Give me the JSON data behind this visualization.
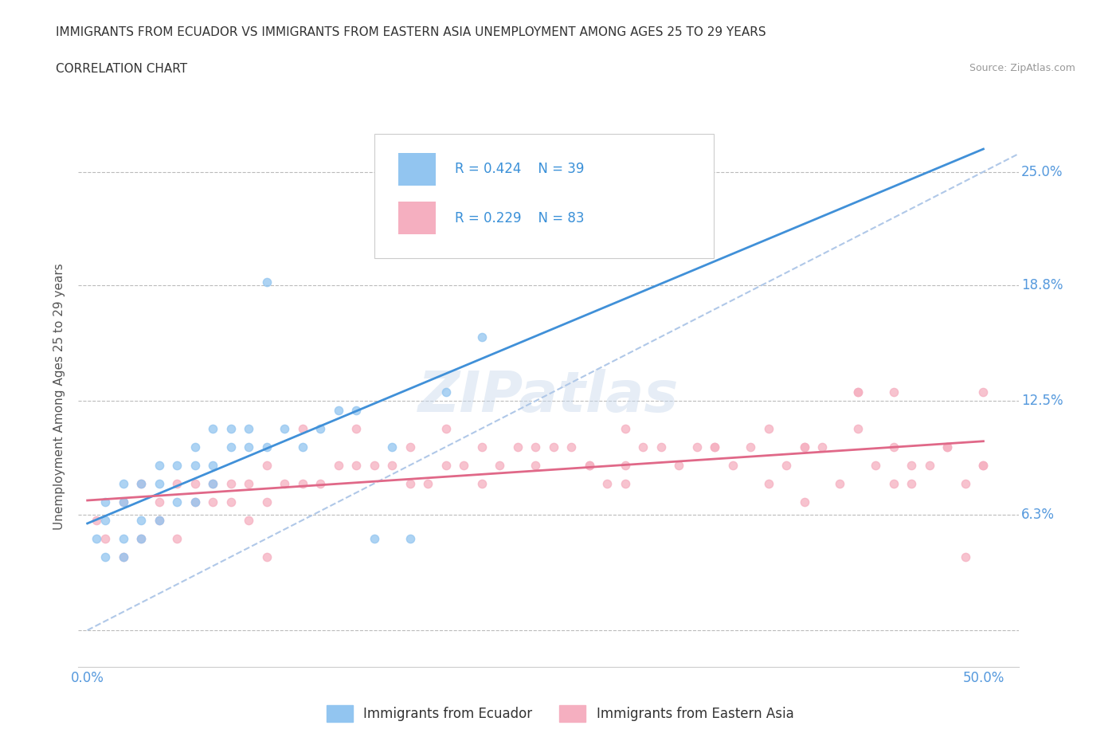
{
  "title_line1": "IMMIGRANTS FROM ECUADOR VS IMMIGRANTS FROM EASTERN ASIA UNEMPLOYMENT AMONG AGES 25 TO 29 YEARS",
  "title_line2": "CORRELATION CHART",
  "source_text": "Source: ZipAtlas.com",
  "ylabel": "Unemployment Among Ages 25 to 29 years",
  "xlim": [
    -0.005,
    0.52
  ],
  "ylim": [
    -0.02,
    0.275
  ],
  "ytick_vals": [
    0.0,
    0.063,
    0.125,
    0.188,
    0.25
  ],
  "ytick_labels": [
    "",
    "6.3%",
    "12.5%",
    "18.8%",
    "25.0%"
  ],
  "xtick_vals": [
    0.0,
    0.1,
    0.2,
    0.3,
    0.4,
    0.5
  ],
  "xtick_labels": [
    "0.0%",
    "",
    "",
    "",
    "",
    "50.0%"
  ],
  "ecuador_color": "#92c5f0",
  "eastern_asia_color": "#f5afc0",
  "ecuador_line_color": "#4090d8",
  "eastern_asia_line_color": "#e06888",
  "dashed_line_color": "#b0c8e8",
  "legend_label1": "Immigrants from Ecuador",
  "legend_label2": "Immigrants from Eastern Asia",
  "watermark": "ZIPatlas",
  "ecuador_x": [
    0.005,
    0.01,
    0.01,
    0.01,
    0.02,
    0.02,
    0.02,
    0.02,
    0.03,
    0.03,
    0.03,
    0.04,
    0.04,
    0.04,
    0.05,
    0.05,
    0.06,
    0.06,
    0.06,
    0.07,
    0.07,
    0.07,
    0.08,
    0.08,
    0.09,
    0.09,
    0.1,
    0.1,
    0.11,
    0.12,
    0.13,
    0.14,
    0.15,
    0.16,
    0.17,
    0.18,
    0.2,
    0.22,
    0.22
  ],
  "ecuador_y": [
    0.05,
    0.04,
    0.06,
    0.07,
    0.04,
    0.05,
    0.07,
    0.08,
    0.05,
    0.06,
    0.08,
    0.06,
    0.08,
    0.09,
    0.07,
    0.09,
    0.07,
    0.09,
    0.1,
    0.08,
    0.09,
    0.11,
    0.1,
    0.11,
    0.1,
    0.11,
    0.1,
    0.19,
    0.11,
    0.1,
    0.11,
    0.12,
    0.12,
    0.05,
    0.1,
    0.05,
    0.13,
    0.16,
    0.22
  ],
  "eastern_asia_x": [
    0.005,
    0.01,
    0.02,
    0.02,
    0.03,
    0.03,
    0.04,
    0.04,
    0.05,
    0.05,
    0.06,
    0.06,
    0.07,
    0.07,
    0.08,
    0.08,
    0.09,
    0.09,
    0.1,
    0.1,
    0.11,
    0.12,
    0.13,
    0.14,
    0.15,
    0.16,
    0.17,
    0.18,
    0.19,
    0.2,
    0.21,
    0.22,
    0.23,
    0.24,
    0.25,
    0.26,
    0.27,
    0.28,
    0.29,
    0.3,
    0.31,
    0.32,
    0.33,
    0.34,
    0.35,
    0.36,
    0.37,
    0.38,
    0.39,
    0.4,
    0.41,
    0.42,
    0.43,
    0.44,
    0.45,
    0.46,
    0.47,
    0.48,
    0.49,
    0.5,
    0.12,
    0.15,
    0.18,
    0.2,
    0.25,
    0.28,
    0.3,
    0.35,
    0.38,
    0.4,
    0.43,
    0.45,
    0.48,
    0.5,
    0.1,
    0.22,
    0.3,
    0.4,
    0.45,
    0.49,
    0.5,
    0.43,
    0.46
  ],
  "eastern_asia_y": [
    0.06,
    0.05,
    0.04,
    0.07,
    0.05,
    0.08,
    0.06,
    0.07,
    0.05,
    0.08,
    0.07,
    0.08,
    0.07,
    0.08,
    0.07,
    0.08,
    0.06,
    0.08,
    0.07,
    0.09,
    0.08,
    0.08,
    0.08,
    0.09,
    0.09,
    0.09,
    0.09,
    0.08,
    0.08,
    0.09,
    0.09,
    0.1,
    0.09,
    0.1,
    0.09,
    0.1,
    0.1,
    0.09,
    0.08,
    0.09,
    0.1,
    0.1,
    0.09,
    0.1,
    0.1,
    0.09,
    0.1,
    0.08,
    0.09,
    0.1,
    0.1,
    0.08,
    0.11,
    0.09,
    0.1,
    0.09,
    0.09,
    0.1,
    0.08,
    0.09,
    0.11,
    0.11,
    0.1,
    0.11,
    0.1,
    0.09,
    0.11,
    0.1,
    0.11,
    0.1,
    0.13,
    0.13,
    0.1,
    0.13,
    0.04,
    0.08,
    0.08,
    0.07,
    0.08,
    0.04,
    0.09,
    0.13,
    0.08
  ]
}
